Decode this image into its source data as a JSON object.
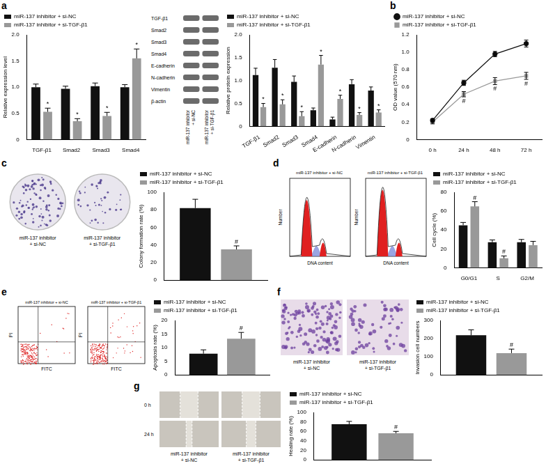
{
  "panel_labels": [
    "a",
    "b",
    "c",
    "d",
    "e",
    "f",
    "g"
  ],
  "chart_data": [
    {
      "type": "bar",
      "y_label": "Relative expression level",
      "categories": [
        "TGF-β1",
        "Smad2",
        "Smad3",
        "Smad4"
      ],
      "series": [
        {
          "name": "miR-137 inhibitor + si-NC",
          "color": "#111111",
          "values": [
            1.0,
            0.97,
            1.02,
            1.0
          ],
          "errors": [
            0.06,
            0.05,
            0.06,
            0.05
          ]
        },
        {
          "name": "miR-137 inhibitor + si-TGF-β1",
          "color": "#999999",
          "values": [
            0.53,
            0.35,
            0.45,
            1.55
          ],
          "errors": [
            0.07,
            0.05,
            0.07,
            0.18
          ],
          "annotations": [
            "*",
            "*",
            "*",
            "*"
          ]
        }
      ],
      "ylim": [
        0,
        2
      ],
      "yticks": [
        0,
        0.5,
        {
          "value": 1,
          "label": "1.0"
        },
        1.5,
        {
          "value": 2,
          "label": "2.0"
        }
      ],
      "grid": false,
      "legend": "top-left"
    },
    {
      "type": "bar",
      "y_label": "Relative protein expression",
      "categories": [
        "TGF-β1",
        "Smad2",
        "Smad3",
        "Smad4",
        "E-cadherin",
        "N-cadherin",
        "Vimentin"
      ],
      "series": [
        {
          "name": "miR-137 inhibitor + si-NC",
          "color": "#111111",
          "values": [
            1.12,
            1.28,
            0.97,
            0.35,
            0.15,
            0.92,
            0.78
          ],
          "errors": [
            0.15,
            0.18,
            0.13,
            0.05,
            0.05,
            0.1,
            0.08
          ]
        },
        {
          "name": "miR-137 inhibitor + si-TGF-β1",
          "color": "#999999",
          "values": [
            0.42,
            0.48,
            0.22,
            1.35,
            0.6,
            0.25,
            0.3
          ],
          "errors": [
            0.08,
            0.1,
            0.1,
            0.2,
            0.08,
            0.05,
            0.06
          ],
          "annotations": [
            "*",
            "*",
            "*",
            "*",
            "*",
            "*",
            "*"
          ]
        }
      ],
      "ylim": [
        0,
        2
      ],
      "yticks": [
        0,
        0.5,
        {
          "value": 1,
          "label": "1.0"
        },
        1.5,
        {
          "value": 2,
          "label": "2.0"
        }
      ],
      "grid": false,
      "legend": "top-left"
    },
    {
      "type": "line",
      "y_label": "OD value (570 nm)",
      "categories": [
        "0 h",
        "24 h",
        "48 h",
        "72 h"
      ],
      "series": [
        {
          "name": "miR-137 inhibitor + si-NC",
          "color": "#111111",
          "marker": "circle",
          "values": [
            0.22,
            0.65,
            0.98,
            1.1
          ],
          "errors": [
            0.02,
            0.03,
            0.03,
            0.04
          ]
        },
        {
          "name": "miR-137 inhibitor + si-TGF-β1",
          "color": "#999999",
          "marker": "square",
          "values": [
            0.2,
            0.52,
            0.67,
            0.73
          ],
          "errors": [
            0.02,
            0.03,
            0.04,
            0.04
          ],
          "annotations": [
            null,
            "#",
            "#",
            "#"
          ]
        }
      ],
      "ylim": [
        0,
        1.2
      ],
      "yticks": [
        0,
        0.2,
        0.4,
        0.6,
        0.8,
        {
          "value": 1,
          "label": "1.0"
        },
        1.2
      ],
      "grid": false,
      "legend": "top-left"
    },
    {
      "type": "bar",
      "y_label": "Colony formation rate (%)",
      "categories": [
        null
      ],
      "series": [
        {
          "name": "miR-137 inhibitor + si-NC",
          "color": "#111111",
          "values": [
            82
          ],
          "errors": [
            10
          ]
        },
        {
          "name": "miR-137 inhibitor + si-TGF-β1",
          "color": "#999999",
          "values": [
            35
          ],
          "errors": [
            4
          ],
          "annotations": [
            "#"
          ]
        }
      ],
      "ylim": [
        0,
        100
      ],
      "yticks": [
        0,
        20,
        40,
        60,
        80,
        100
      ],
      "grid": false,
      "legend": "top-left",
      "tick_labels": "y"
    },
    {
      "type": "bar",
      "y_label": "Cell cycle (%)",
      "categories": [
        "G0/G1",
        "S",
        "G2/M"
      ],
      "series": [
        {
          "name": "miR-137 inhibitor + si-NC",
          "color": "#111111",
          "values": [
            45,
            27,
            27
          ],
          "errors": [
            3,
            2.5,
            3
          ]
        },
        {
          "name": "miR-137 inhibitor + si-TGF-β1",
          "color": "#999999",
          "values": [
            65,
            10,
            24
          ],
          "errors": [
            5,
            2.5,
            4
          ],
          "annotations": [
            "#",
            "#",
            null
          ]
        }
      ],
      "ylim": [
        0,
        80
      ],
      "yticks": [
        0,
        20,
        40,
        60,
        80
      ],
      "grid": false,
      "legend": "top-left"
    },
    {
      "type": "bar",
      "y_label": "Apoptosis rate (%)",
      "categories": [
        null
      ],
      "series": [
        {
          "name": "miR-137 inhibitor + si-NC",
          "color": "#111111",
          "values": [
            7.8
          ],
          "errors": [
            1.4
          ]
        },
        {
          "name": "miR-137 inhibitor + si-TGF-β1",
          "color": "#999999",
          "values": [
            13.3
          ],
          "errors": [
            2.3
          ],
          "annotations": [
            "#"
          ]
        }
      ],
      "ylim": [
        0,
        20
      ],
      "yticks": [
        0,
        5,
        10,
        15,
        20
      ],
      "grid": false,
      "legend": "top-left",
      "tick_labels": "y"
    },
    {
      "type": "bar",
      "y_label": "Invasion cell numbers",
      "categories": [
        null
      ],
      "series": [
        {
          "name": "miR-137 inhibitor + si-NC",
          "color": "#111111",
          "values": [
            218
          ],
          "errors": [
            30
          ]
        },
        {
          "name": "miR-137 inhibitor + si-TGF-β1",
          "color": "#999999",
          "values": [
            120
          ],
          "errors": [
            22
          ],
          "annotations": [
            "#"
          ]
        }
      ],
      "ylim": [
        0,
        300
      ],
      "yticks": [
        0,
        100,
        200,
        300
      ],
      "grid": false,
      "legend": "top-left",
      "tick_labels": "y"
    },
    {
      "type": "bar",
      "y_label": "Healing rate (%)",
      "categories": [
        null
      ],
      "series": [
        {
          "name": "miR-137 inhibitor + si-NC",
          "color": "#111111",
          "values": [
            75
          ],
          "errors": [
            6
          ]
        },
        {
          "name": "miR-137 inhibitor + si-TGF-β1",
          "color": "#999999",
          "values": [
            56
          ],
          "errors": [
            4
          ],
          "annotations": [
            "#"
          ]
        }
      ],
      "ylim": [
        0,
        100
      ],
      "yticks": [
        0,
        20,
        40,
        60,
        80,
        100
      ],
      "grid": false,
      "legend": "top-left",
      "tick_labels": "y"
    }
  ],
  "images": [
    {
      "type": "western_blot",
      "rows": [
        "TGF-β1",
        "Smad2",
        "Smad3",
        "Smad4",
        "E-cadherin",
        "N-cadherin",
        "Vimentin",
        "β-actin"
      ],
      "lanes": [
        "miR-137 inhibitor + si-NC",
        "miR-137 inhibitor + si-TGF-β1"
      ]
    },
    {
      "type": "colony_photos",
      "captions": [
        "miR-137 inhibitor + si-NC",
        "miR-137 inhibitor + si-TGF-β1"
      ]
    },
    {
      "type": "cell_cycle_histograms",
      "titles": [
        "miR-137 inhibitor + si-NC",
        "miR-137 inhibitor + si-TGF-β1"
      ],
      "x_label": "DNA content",
      "y_label": "Number"
    },
    {
      "type": "flow_dot_plots",
      "titles": [
        "miR-137 inhibitor + si-NC",
        "miR-137 inhibitor + si-TGF-β1"
      ],
      "x_label": "FITC",
      "y_label": "PI"
    },
    {
      "type": "invasion_micrographs",
      "captions": [
        "miR-137 inhibitor + si-NC",
        "miR-137 inhibitor + si-TGF-β1"
      ]
    },
    {
      "type": "wound_photos",
      "captions": [
        "miR-137 inhibitor + si-NC",
        "miR-137 inhibitor + si-TGF-β1"
      ],
      "times": [
        "0 h",
        "24 h"
      ]
    }
  ]
}
